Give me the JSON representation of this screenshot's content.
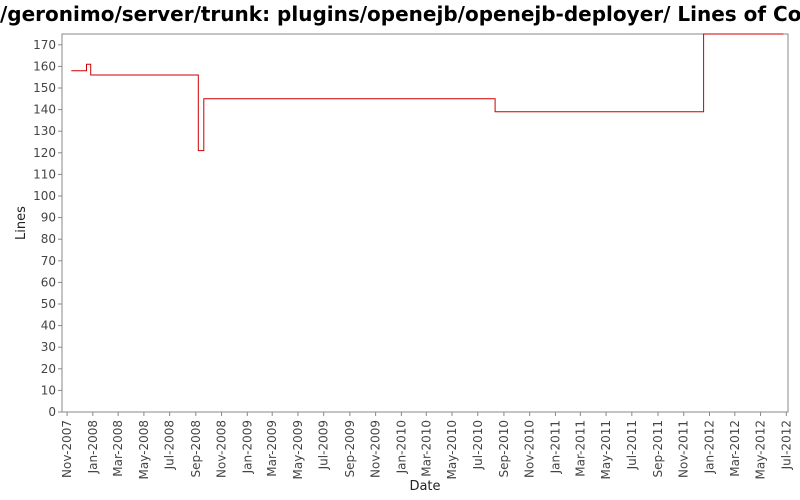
{
  "chart_data": {
    "type": "line",
    "title": "/geronimo/server/trunk: plugins/openejb/openejb-deployer/ Lines of Code",
    "xlabel": "Date",
    "ylabel": "Lines",
    "ylim": [
      0,
      175
    ],
    "xlim": [
      "2007-10-20",
      "2012-07-05"
    ],
    "y_ticks": [
      0,
      10,
      20,
      30,
      40,
      50,
      60,
      70,
      80,
      90,
      100,
      110,
      120,
      130,
      140,
      150,
      160,
      170
    ],
    "x_ticks": [
      "Nov-2007",
      "Jan-2008",
      "Mar-2008",
      "May-2008",
      "Jul-2008",
      "Sep-2008",
      "Nov-2008",
      "Jan-2009",
      "Mar-2009",
      "May-2009",
      "Jul-2009",
      "Sep-2009",
      "Nov-2009",
      "Jan-2010",
      "Mar-2010",
      "May-2010",
      "Jul-2010",
      "Sep-2010",
      "Nov-2010",
      "Jan-2011",
      "Mar-2011",
      "May-2011",
      "Jul-2011",
      "Sep-2011",
      "Nov-2011",
      "Jan-2012",
      "Mar-2012",
      "May-2012",
      "Jul-2012"
    ],
    "grid": false,
    "line_style": "step",
    "colors": {
      "series": "#cc0000",
      "axis": "#888888",
      "background": "#ffffff"
    },
    "series": [
      {
        "points": [
          {
            "x": "2007-11-11",
            "y": 158
          },
          {
            "x": "2007-12-17",
            "y": 161
          },
          {
            "x": "2007-12-27",
            "y": 156
          },
          {
            "x": "2008-09-07",
            "y": 121
          },
          {
            "x": "2008-09-20",
            "y": 145
          },
          {
            "x": "2010-08-11",
            "y": 139
          },
          {
            "x": "2011-12-18",
            "y": 175
          },
          {
            "x": "2012-06-24",
            "y": 175
          }
        ]
      }
    ]
  }
}
